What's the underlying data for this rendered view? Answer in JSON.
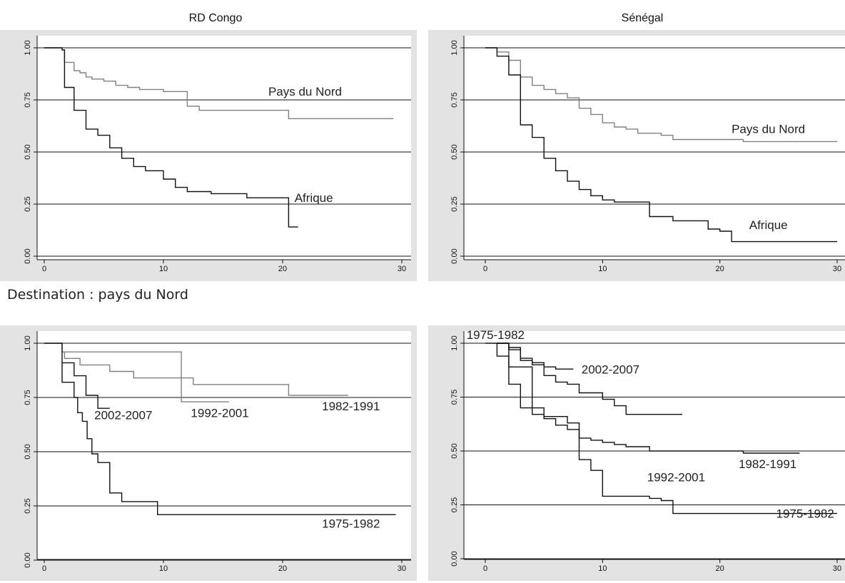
{
  "titles": {
    "left": "RD Congo",
    "right": "Sénégal",
    "section2": "Destination : pays du Nord"
  },
  "colors": {
    "panel_bg": "#e3e3e3",
    "plot_bg": "#ffffff",
    "dark": "#111111",
    "gray": "#808080"
  },
  "chart_data": [
    {
      "type": "line",
      "step": true,
      "xlim": [
        0,
        30
      ],
      "ylim": [
        0,
        1
      ],
      "xticks": [
        0,
        10,
        20,
        30
      ],
      "yticks": [
        0,
        0.25,
        0.5,
        0.75,
        1
      ],
      "xtick_labels": [
        "0",
        "10",
        "20",
        "30"
      ],
      "ytick_labels": [
        "0.00",
        "0.25",
        "0.50",
        "0.75",
        "1.00"
      ],
      "annotations": [
        {
          "text": "Pays du Nord",
          "x": 18.8,
          "y": 0.77
        },
        {
          "text": "Afrique",
          "x": 21.0,
          "y": 0.26
        }
      ],
      "series": [
        {
          "color": "gray",
          "x": [
            0,
            1.5,
            1.7,
            2.5,
            3,
            3.5,
            4,
            5,
            6,
            7,
            8,
            10,
            12,
            13,
            15,
            20.5,
            29.3
          ],
          "y": [
            1,
            0.99,
            0.93,
            0.89,
            0.88,
            0.86,
            0.85,
            0.84,
            0.82,
            0.81,
            0.8,
            0.79,
            0.72,
            0.7,
            0.7,
            0.66,
            0.66
          ]
        },
        {
          "color": "dark",
          "x": [
            0,
            1.5,
            1.7,
            2.5,
            3.5,
            4.5,
            5.5,
            6.5,
            7.5,
            8.5,
            10,
            11,
            12,
            14,
            17,
            20.5,
            21.3
          ],
          "y": [
            1,
            0.99,
            0.81,
            0.7,
            0.61,
            0.58,
            0.52,
            0.47,
            0.43,
            0.41,
            0.37,
            0.33,
            0.31,
            0.3,
            0.28,
            0.14,
            0.14
          ]
        }
      ]
    },
    {
      "type": "line",
      "step": true,
      "xlim": [
        0,
        30
      ],
      "ylim": [
        0,
        1
      ],
      "xticks": [
        0,
        10,
        20,
        30
      ],
      "yticks": [
        0,
        0.25,
        0.5,
        0.75,
        1
      ],
      "xtick_labels": [
        "0",
        "10",
        "20",
        "30"
      ],
      "ytick_labels": [
        "0.00",
        "0.25",
        "0.50",
        "0.75",
        "1.00"
      ],
      "annotations": [
        {
          "text": "Pays du Nord",
          "x": 21.0,
          "y": 0.59
        },
        {
          "text": "Afrique",
          "x": 22.5,
          "y": 0.13
        }
      ],
      "series": [
        {
          "color": "gray",
          "x": [
            0,
            1,
            2,
            3,
            4,
            5,
            6,
            7,
            8,
            9,
            10,
            11,
            12,
            13,
            15,
            16,
            22,
            30
          ],
          "y": [
            1,
            0.98,
            0.94,
            0.86,
            0.82,
            0.8,
            0.78,
            0.76,
            0.71,
            0.68,
            0.64,
            0.62,
            0.61,
            0.59,
            0.58,
            0.56,
            0.55,
            0.55
          ]
        },
        {
          "color": "dark",
          "x": [
            0,
            1,
            2,
            2.5,
            3,
            4,
            5,
            6,
            7,
            8,
            9,
            10,
            11,
            12,
            14,
            15,
            16,
            19,
            20,
            21,
            30
          ],
          "y": [
            1,
            0.96,
            0.87,
            0.87,
            0.63,
            0.57,
            0.47,
            0.41,
            0.36,
            0.32,
            0.29,
            0.27,
            0.26,
            0.26,
            0.19,
            0.19,
            0.17,
            0.13,
            0.12,
            0.07,
            0.07
          ]
        }
      ]
    },
    {
      "type": "line",
      "step": true,
      "xlim": [
        0,
        30
      ],
      "ylim": [
        0,
        1
      ],
      "xticks": [
        0,
        10,
        20,
        30
      ],
      "yticks": [
        0,
        0.25,
        0.5,
        0.75,
        1
      ],
      "xtick_labels": [
        "0",
        "10",
        "20",
        "30"
      ],
      "ytick_labels": [
        "0.00",
        "0.25",
        "0.50",
        "0.75",
        "1.00"
      ],
      "annotations": [
        {
          "text": "2002-2007",
          "x": 4.2,
          "y": 0.65
        },
        {
          "text": "1992-2001",
          "x": 12.3,
          "y": 0.66
        },
        {
          "text": "1982-1991",
          "x": 23.3,
          "y": 0.69
        },
        {
          "text": "1975-1982",
          "x": 23.3,
          "y": 0.15
        }
      ],
      "series": [
        {
          "name": "1982-1991",
          "color": "gray",
          "x": [
            0,
            1.5,
            1.7,
            3,
            4,
            5.5,
            7.5,
            12.5,
            20.5,
            25.5
          ],
          "y": [
            1,
            0.96,
            0.93,
            0.9,
            0.9,
            0.87,
            0.84,
            0.81,
            0.76,
            0.76
          ]
        },
        {
          "name": "1992-2001",
          "color": "gray",
          "x": [
            1.5,
            11.5,
            15.5
          ],
          "y": [
            0.96,
            0.73,
            0.73
          ]
        },
        {
          "name": "2002-2007",
          "color": "dark",
          "x": [
            1.5,
            2.5,
            3.5,
            4.5,
            5.5
          ],
          "y": [
            0.91,
            0.85,
            0.76,
            0.7,
            0.7
          ]
        },
        {
          "name": "1975-1982",
          "color": "dark",
          "x": [
            0,
            1.5,
            2.5,
            2.8,
            3.2,
            3.6,
            4,
            4.5,
            5.5,
            6.5,
            9.5,
            29.5
          ],
          "y": [
            1,
            0.82,
            0.75,
            0.68,
            0.64,
            0.56,
            0.49,
            0.45,
            0.31,
            0.27,
            0.21,
            0.21
          ]
        }
      ]
    },
    {
      "type": "line",
      "step": true,
      "xlim": [
        0,
        30
      ],
      "ylim": [
        0,
        1
      ],
      "xticks": [
        0,
        10,
        20,
        30
      ],
      "yticks": [
        0,
        0.25,
        0.5,
        0.75,
        1
      ],
      "xtick_labels": [
        "0",
        "10",
        "20",
        "30"
      ],
      "ytick_labels": [
        "0.00",
        "0.25",
        "0.50",
        "0.75",
        "1.00"
      ],
      "annotations": [
        {
          "text": "1975-1982",
          "x": -1.6,
          "y": 1.02
        },
        {
          "text": "2002-2007",
          "x": 8.2,
          "y": 0.86
        },
        {
          "text": "1992-2001",
          "x": 13.8,
          "y": 0.36
        },
        {
          "text": "1982-1991",
          "x": 21.6,
          "y": 0.42
        },
        {
          "text": "1975-1982",
          "x": 24.8,
          "y": 0.19
        }
      ],
      "series": [
        {
          "name": "2002-2007",
          "color": "dark",
          "x": [
            1,
            2,
            3,
            4,
            5,
            6,
            7.5
          ],
          "y": [
            1,
            0.98,
            0.93,
            0.91,
            0.89,
            0.88,
            0.88
          ]
        },
        {
          "name": "1992-2001",
          "color": "dark",
          "x": [
            1,
            2,
            3,
            4,
            5,
            6,
            7,
            8,
            10,
            11,
            12,
            16.8
          ],
          "y": [
            1,
            0.97,
            0.92,
            0.9,
            0.85,
            0.82,
            0.81,
            0.77,
            0.74,
            0.71,
            0.67,
            0.67
          ]
        },
        {
          "name": "1982-1991",
          "color": "dark",
          "x": [
            1,
            2,
            3,
            4,
            5,
            6,
            7,
            8,
            9,
            10,
            11,
            12,
            14,
            22,
            26.8
          ],
          "y": [
            1,
            0.89,
            0.89,
            0.67,
            0.65,
            0.62,
            0.6,
            0.56,
            0.55,
            0.54,
            0.53,
            0.52,
            0.5,
            0.49,
            0.49
          ]
        },
        {
          "name": "1975-1982",
          "color": "dark",
          "x": [
            0,
            1,
            2,
            3,
            4,
            5,
            7,
            8,
            9,
            10,
            14,
            15,
            16,
            30
          ],
          "y": [
            1,
            0.94,
            0.81,
            0.7,
            0.7,
            0.66,
            0.63,
            0.46,
            0.41,
            0.29,
            0.28,
            0.27,
            0.21,
            0.21
          ]
        }
      ]
    }
  ]
}
